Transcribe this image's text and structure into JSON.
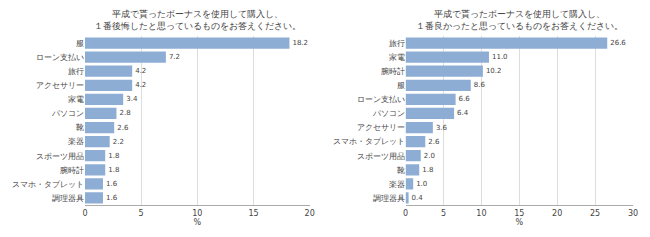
{
  "chart_data": [
    {
      "type": "bar",
      "title": "平成で貰ったボーナスを使用して購入し、\n１番後悔したと思っているものをお答えください。",
      "categories": [
        "服",
        "ローン支払い",
        "旅行",
        "アクセサリー",
        "家電",
        "パソコン",
        "靴",
        "楽器",
        "スポーツ用品",
        "腕時計",
        "スマホ・タブレット",
        "調理器具"
      ],
      "values": [
        18.2,
        7.2,
        4.2,
        4.2,
        3.4,
        2.8,
        2.6,
        2.2,
        1.8,
        1.8,
        1.6,
        1.6
      ],
      "value_labels": [
        "18.2",
        "7.2",
        "4.2",
        "4.2",
        "3.4",
        "2.8",
        "2.6",
        "2.2",
        "1.8",
        "1.8",
        "1.6",
        "1.6"
      ],
      "color": "#8eadd4",
      "orientation": "horizontal",
      "xlabel": "%",
      "xlim": [
        0,
        20
      ],
      "xticks": [
        0,
        5,
        10,
        15,
        20
      ],
      "grid": true,
      "data_labels": true
    },
    {
      "type": "bar",
      "title": "平成で貰ったボーナスを使用して購入し、\n１番良かったと思っているものをお答えください。",
      "categories": [
        "旅行",
        "家電",
        "腕時計",
        "服",
        "ローン支払い",
        "パソコン",
        "アクセサリー",
        "スマホ・タブレット",
        "スポーツ用品",
        "靴",
        "楽器",
        "調理器具"
      ],
      "values": [
        26.6,
        11.0,
        10.2,
        8.6,
        6.6,
        6.4,
        3.6,
        2.6,
        2.0,
        1.8,
        1.0,
        0.4
      ],
      "value_labels": [
        "26.6",
        "11.0",
        "10.2",
        "8.6",
        "6.6",
        "6.4",
        "3.6",
        "2.6",
        "2.0",
        "1.8",
        "1.0",
        "0.4"
      ],
      "color": "#8eadd4",
      "orientation": "horizontal",
      "xlabel": "%",
      "xlim": [
        0,
        30
      ],
      "xticks": [
        0,
        5,
        10,
        15,
        20,
        25,
        30
      ],
      "grid": true,
      "data_labels": true
    }
  ]
}
